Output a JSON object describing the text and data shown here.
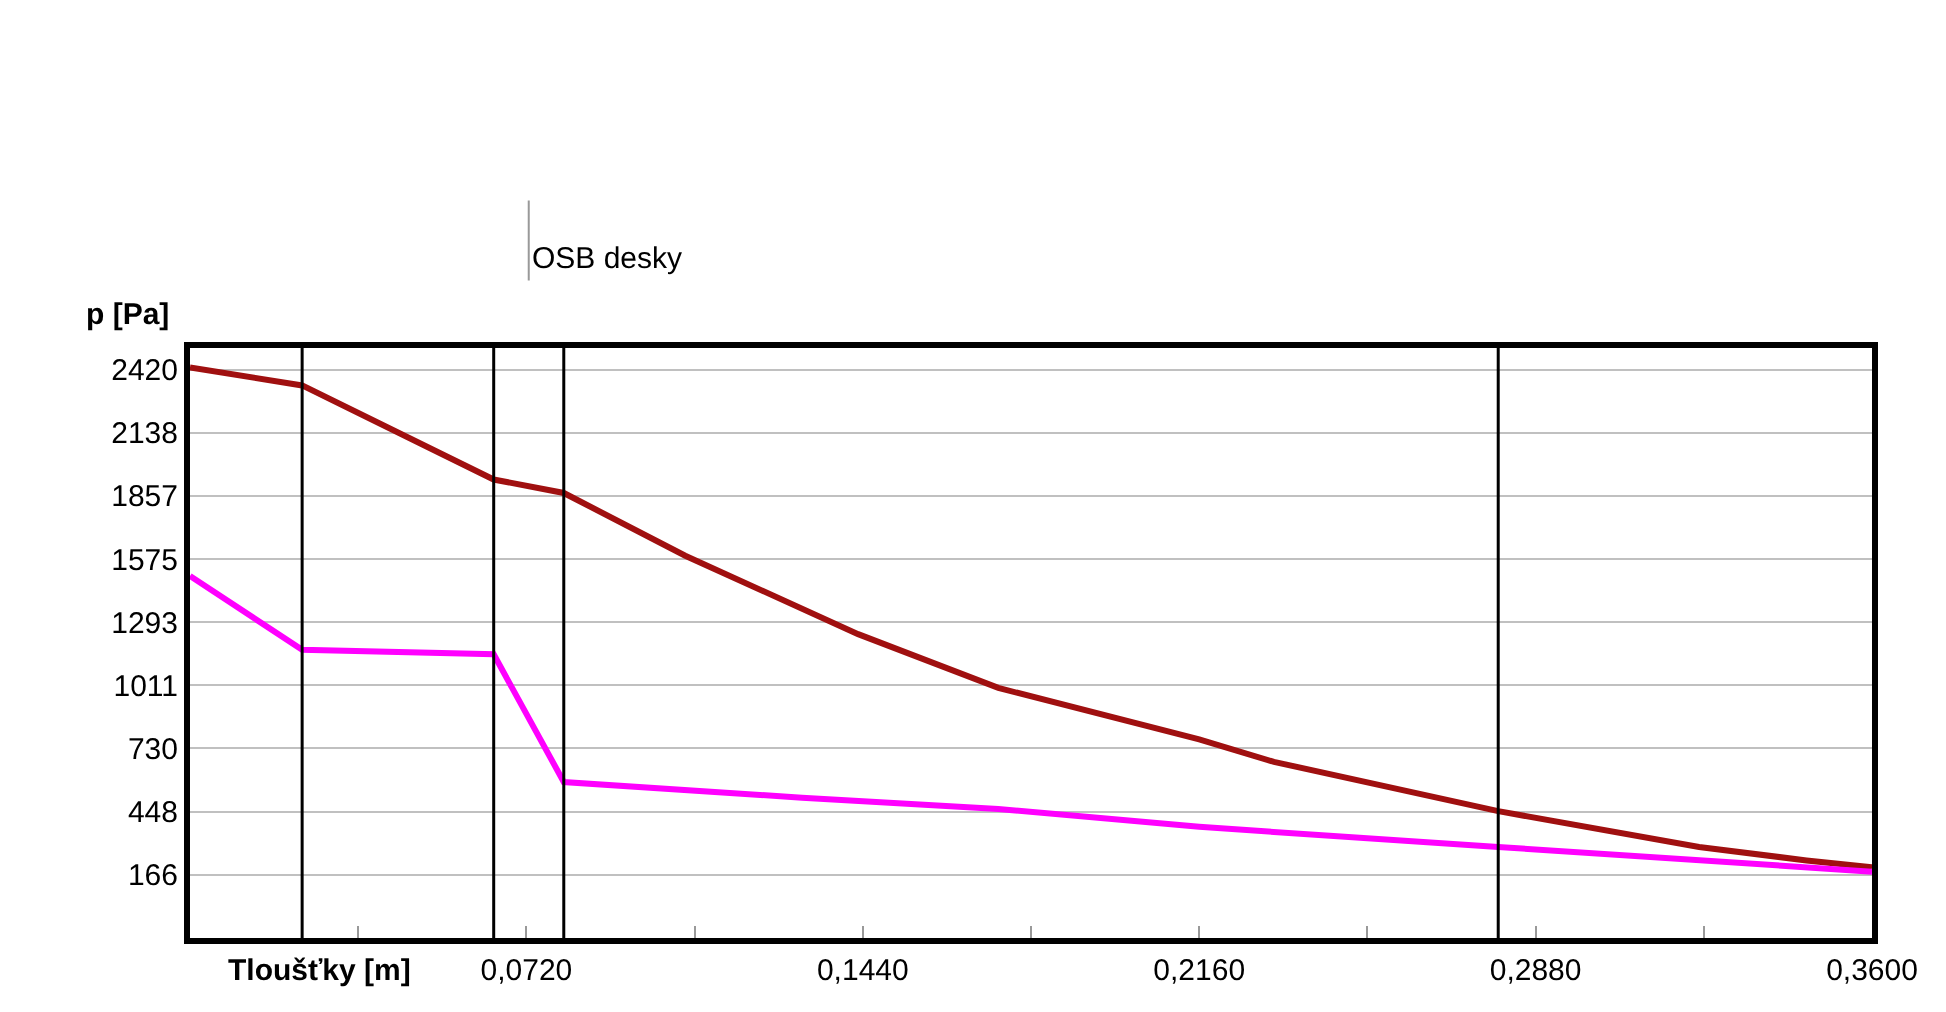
{
  "chart_data": {
    "type": "line",
    "xlabel": "Tloušťky [m]",
    "ylabel": "p [Pa]",
    "xlim": [
      0,
      0.36
    ],
    "ylim": [
      -116,
      2517
    ],
    "xticks": [
      {
        "value": 0.036,
        "label": null
      },
      {
        "value": 0.072,
        "label": "0,0720"
      },
      {
        "value": 0.108,
        "label": null
      },
      {
        "value": 0.144,
        "label": "0,1440"
      },
      {
        "value": 0.18,
        "label": null
      },
      {
        "value": 0.216,
        "label": "0,2160"
      },
      {
        "value": 0.252,
        "label": null
      },
      {
        "value": 0.288,
        "label": "0,2880"
      },
      {
        "value": 0.324,
        "label": null
      },
      {
        "value": 0.36,
        "label": "0,3600"
      }
    ],
    "yticks": [
      166,
      448,
      730,
      1011,
      1293,
      1575,
      1857,
      2138,
      2420
    ],
    "grid": "y",
    "legend": false,
    "series": [
      {
        "color": "#a01010",
        "x": [
          0,
          0.024,
          0.065,
          0.08,
          0.106,
          0.143,
          0.173,
          0.216,
          0.232,
          0.28,
          0.323,
          0.346,
          0.36
        ],
        "values": [
          2430,
          2350,
          1930,
          1870,
          1590,
          1240,
          1000,
          770,
          670,
          450,
          290,
          230,
          200
        ]
      },
      {
        "color": "#ff00ff",
        "x": [
          0,
          0.024,
          0.065,
          0.08,
          0.131,
          0.173,
          0.216,
          0.28,
          0.36
        ],
        "values": [
          1500,
          1170,
          1150,
          580,
          510,
          460,
          380,
          290,
          180
        ]
      }
    ],
    "ref_lines": [
      {
        "axis": "x",
        "value": 0.024,
        "color": "#000000"
      },
      {
        "axis": "x",
        "value": 0.065,
        "color": "#000000"
      },
      {
        "axis": "x",
        "value": 0.08,
        "color": "#000000"
      },
      {
        "axis": "x",
        "value": 0.28,
        "color": "#000000"
      }
    ],
    "annotations": [
      "OSB desky"
    ]
  }
}
